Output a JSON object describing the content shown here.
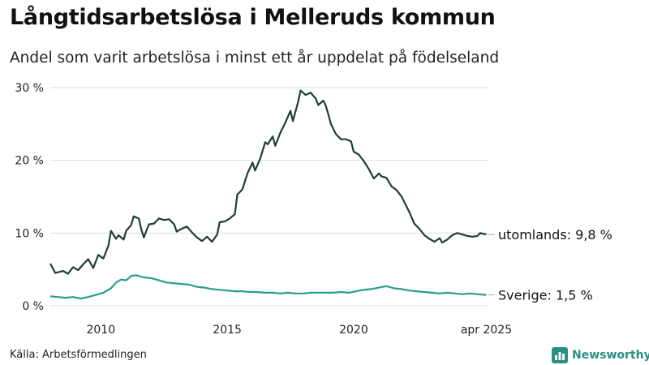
{
  "title": "Långtidsarbetslösa i Melleruds kommun",
  "subtitle": "Andel som varit arbetslösa i minst ett år uppdelat på födelseland",
  "source": "Källa: Arbetsförmedlingen",
  "brand": {
    "name": "Newsworthy",
    "icon": "bar-chart-logo-icon",
    "color": "#2a8f86"
  },
  "chart_data": {
    "type": "line",
    "title": "Långtidsarbetslösa i Melleruds kommun",
    "subtitle": "Andel som varit arbetslösa i minst ett år uppdelat på födelseland",
    "ylim": [
      0,
      30
    ],
    "y_ticks": [
      {
        "value": 0,
        "label": "0 %"
      },
      {
        "value": 10,
        "label": "10 %"
      },
      {
        "value": 20,
        "label": "20 %"
      },
      {
        "value": 30,
        "label": "30 %"
      }
    ],
    "xlim": [
      2008.0,
      2025.33
    ],
    "x_ticks": [
      {
        "value": 2010,
        "label": "2010"
      },
      {
        "value": 2015,
        "label": "2015"
      },
      {
        "value": 2020,
        "label": "2020"
      },
      {
        "value": 2025.25,
        "label": "apr 2025"
      }
    ],
    "grid": "horizontal",
    "series": [
      {
        "name": "utomlands",
        "color": "#1f3d36",
        "end_label": "utomlands: 9,8 %",
        "points": [
          [
            2008.0,
            5.8
          ],
          [
            2008.2,
            4.5
          ],
          [
            2008.5,
            4.8
          ],
          [
            2008.7,
            4.4
          ],
          [
            2008.9,
            5.3
          ],
          [
            2009.1,
            4.9
          ],
          [
            2009.3,
            5.7
          ],
          [
            2009.5,
            6.4
          ],
          [
            2009.7,
            5.2
          ],
          [
            2009.9,
            7.0
          ],
          [
            2010.1,
            6.5
          ],
          [
            2010.3,
            8.3
          ],
          [
            2010.4,
            10.3
          ],
          [
            2010.6,
            9.2
          ],
          [
            2010.7,
            9.7
          ],
          [
            2010.9,
            9.1
          ],
          [
            2011.0,
            10.3
          ],
          [
            2011.2,
            11.1
          ],
          [
            2011.3,
            12.3
          ],
          [
            2011.5,
            12.0
          ],
          [
            2011.6,
            10.5
          ],
          [
            2011.7,
            9.4
          ],
          [
            2011.9,
            11.2
          ],
          [
            2012.1,
            11.3
          ],
          [
            2012.3,
            12.0
          ],
          [
            2012.5,
            11.8
          ],
          [
            2012.7,
            11.9
          ],
          [
            2012.9,
            11.2
          ],
          [
            2013.0,
            10.2
          ],
          [
            2013.2,
            10.6
          ],
          [
            2013.4,
            10.9
          ],
          [
            2013.6,
            10.1
          ],
          [
            2013.8,
            9.4
          ],
          [
            2014.0,
            8.9
          ],
          [
            2014.2,
            9.5
          ],
          [
            2014.4,
            8.8
          ],
          [
            2014.6,
            9.8
          ],
          [
            2014.7,
            11.5
          ],
          [
            2014.9,
            11.6
          ],
          [
            2015.1,
            12.0
          ],
          [
            2015.3,
            12.6
          ],
          [
            2015.4,
            15.3
          ],
          [
            2015.6,
            16.0
          ],
          [
            2015.8,
            18.2
          ],
          [
            2016.0,
            19.7
          ],
          [
            2016.1,
            18.6
          ],
          [
            2016.3,
            20.2
          ],
          [
            2016.5,
            22.5
          ],
          [
            2016.6,
            22.2
          ],
          [
            2016.8,
            23.3
          ],
          [
            2016.9,
            22.0
          ],
          [
            2017.1,
            23.8
          ],
          [
            2017.3,
            25.2
          ],
          [
            2017.5,
            26.8
          ],
          [
            2017.6,
            25.4
          ],
          [
            2017.8,
            28.0
          ],
          [
            2017.9,
            29.6
          ],
          [
            2018.1,
            29.0
          ],
          [
            2018.3,
            29.3
          ],
          [
            2018.5,
            28.5
          ],
          [
            2018.6,
            27.6
          ],
          [
            2018.8,
            28.2
          ],
          [
            2018.9,
            27.5
          ],
          [
            2019.0,
            26.3
          ],
          [
            2019.1,
            25.0
          ],
          [
            2019.3,
            23.6
          ],
          [
            2019.5,
            22.9
          ],
          [
            2019.7,
            22.9
          ],
          [
            2019.9,
            22.6
          ],
          [
            2020.0,
            21.2
          ],
          [
            2020.2,
            20.8
          ],
          [
            2020.4,
            19.9
          ],
          [
            2020.6,
            18.8
          ],
          [
            2020.8,
            17.5
          ],
          [
            2021.0,
            18.2
          ],
          [
            2021.1,
            17.8
          ],
          [
            2021.3,
            17.6
          ],
          [
            2021.5,
            16.4
          ],
          [
            2021.7,
            15.9
          ],
          [
            2021.9,
            15.0
          ],
          [
            2022.0,
            14.3
          ],
          [
            2022.2,
            12.9
          ],
          [
            2022.4,
            11.3
          ],
          [
            2022.6,
            10.6
          ],
          [
            2022.8,
            9.7
          ],
          [
            2023.0,
            9.2
          ],
          [
            2023.2,
            8.8
          ],
          [
            2023.4,
            9.3
          ],
          [
            2023.5,
            8.7
          ],
          [
            2023.7,
            9.1
          ],
          [
            2023.9,
            9.7
          ],
          [
            2024.1,
            10.0
          ],
          [
            2024.3,
            9.8
          ],
          [
            2024.5,
            9.6
          ],
          [
            2024.7,
            9.5
          ],
          [
            2024.9,
            9.6
          ],
          [
            2025.0,
            10.0
          ],
          [
            2025.25,
            9.8
          ]
        ]
      },
      {
        "name": "Sverige",
        "color": "#2a9d8f",
        "end_label": "Sverige: 1,5 %",
        "points": [
          [
            2008.0,
            1.3
          ],
          [
            2008.3,
            1.2
          ],
          [
            2008.6,
            1.1
          ],
          [
            2008.9,
            1.2
          ],
          [
            2009.2,
            1.0
          ],
          [
            2009.5,
            1.2
          ],
          [
            2009.8,
            1.5
          ],
          [
            2010.1,
            1.8
          ],
          [
            2010.4,
            2.4
          ],
          [
            2010.6,
            3.2
          ],
          [
            2010.8,
            3.6
          ],
          [
            2011.0,
            3.5
          ],
          [
            2011.2,
            4.1
          ],
          [
            2011.4,
            4.2
          ],
          [
            2011.7,
            3.9
          ],
          [
            2012.0,
            3.8
          ],
          [
            2012.3,
            3.5
          ],
          [
            2012.6,
            3.2
          ],
          [
            2012.9,
            3.1
          ],
          [
            2013.2,
            3.0
          ],
          [
            2013.5,
            2.9
          ],
          [
            2013.8,
            2.6
          ],
          [
            2014.1,
            2.5
          ],
          [
            2014.4,
            2.3
          ],
          [
            2014.7,
            2.2
          ],
          [
            2015.0,
            2.1
          ],
          [
            2015.3,
            2.0
          ],
          [
            2015.6,
            2.0
          ],
          [
            2015.9,
            1.9
          ],
          [
            2016.2,
            1.9
          ],
          [
            2016.5,
            1.8
          ],
          [
            2016.8,
            1.8
          ],
          [
            2017.1,
            1.7
          ],
          [
            2017.4,
            1.8
          ],
          [
            2017.7,
            1.7
          ],
          [
            2018.0,
            1.7
          ],
          [
            2018.3,
            1.8
          ],
          [
            2018.6,
            1.8
          ],
          [
            2018.9,
            1.8
          ],
          [
            2019.2,
            1.8
          ],
          [
            2019.5,
            1.9
          ],
          [
            2019.8,
            1.8
          ],
          [
            2020.1,
            2.0
          ],
          [
            2020.4,
            2.2
          ],
          [
            2020.7,
            2.3
          ],
          [
            2021.0,
            2.5
          ],
          [
            2021.3,
            2.7
          ],
          [
            2021.6,
            2.4
          ],
          [
            2021.9,
            2.3
          ],
          [
            2022.2,
            2.1
          ],
          [
            2022.5,
            2.0
          ],
          [
            2022.8,
            1.9
          ],
          [
            2023.1,
            1.8
          ],
          [
            2023.4,
            1.7
          ],
          [
            2023.7,
            1.8
          ],
          [
            2024.0,
            1.7
          ],
          [
            2024.3,
            1.6
          ],
          [
            2024.6,
            1.7
          ],
          [
            2024.9,
            1.6
          ],
          [
            2025.25,
            1.5
          ]
        ]
      }
    ]
  }
}
